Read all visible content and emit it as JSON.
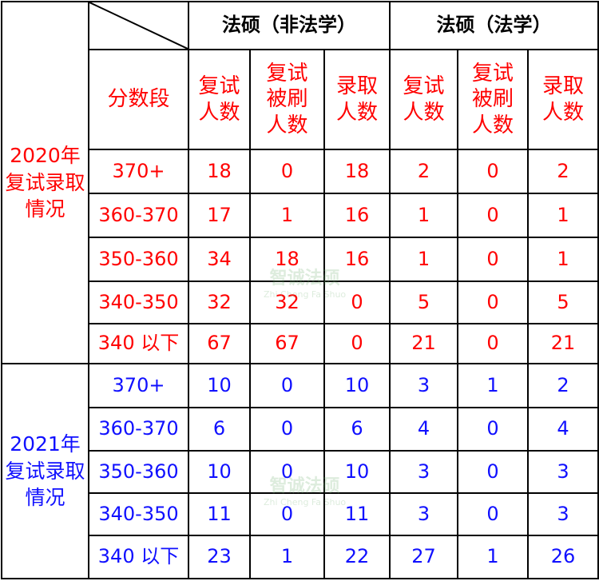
{
  "header": {
    "group_non_law": "法硕（非法学）",
    "group_law": "法硕（法学）"
  },
  "subheader": {
    "score_band": "分数段",
    "columns": [
      "复试人数",
      "复试被刷人数",
      "录取人数",
      "复试人数",
      "复试被刷人数",
      "录取人数"
    ]
  },
  "colors": {
    "year_2020": "#ff0000",
    "year_2021": "#1010ff"
  },
  "watermark": {
    "name": "智诚法硕",
    "pinyin": "Zhi Cheng Fa Shuo"
  },
  "sections": [
    {
      "label": "2020年复试录取情况",
      "rows": [
        {
          "band": "370+",
          "values": [
            "18",
            "0",
            "18",
            "2",
            "0",
            "2"
          ]
        },
        {
          "band": "360-370",
          "values": [
            "17",
            "1",
            "16",
            "1",
            "0",
            "1"
          ]
        },
        {
          "band": "350-360",
          "values": [
            "34",
            "18",
            "16",
            "1",
            "0",
            "1"
          ]
        },
        {
          "band": "340-350",
          "values": [
            "32",
            "32",
            "0",
            "5",
            "0",
            "5"
          ]
        },
        {
          "band": "340 以下",
          "values": [
            "67",
            "67",
            "0",
            "21",
            "0",
            "21"
          ]
        }
      ]
    },
    {
      "label": "2021年复试录取情况",
      "rows": [
        {
          "band": "370+",
          "values": [
            "10",
            "0",
            "10",
            "3",
            "1",
            "2"
          ]
        },
        {
          "band": "360-370",
          "values": [
            "6",
            "0",
            "6",
            "4",
            "0",
            "4"
          ]
        },
        {
          "band": "350-360",
          "values": [
            "10",
            "0",
            "10",
            "3",
            "0",
            "3"
          ]
        },
        {
          "band": "340-350",
          "values": [
            "11",
            "0",
            "11",
            "3",
            "0",
            "3"
          ]
        },
        {
          "band": "340 以下",
          "values": [
            "23",
            "1",
            "22",
            "27",
            "1",
            "26"
          ]
        }
      ]
    }
  ]
}
